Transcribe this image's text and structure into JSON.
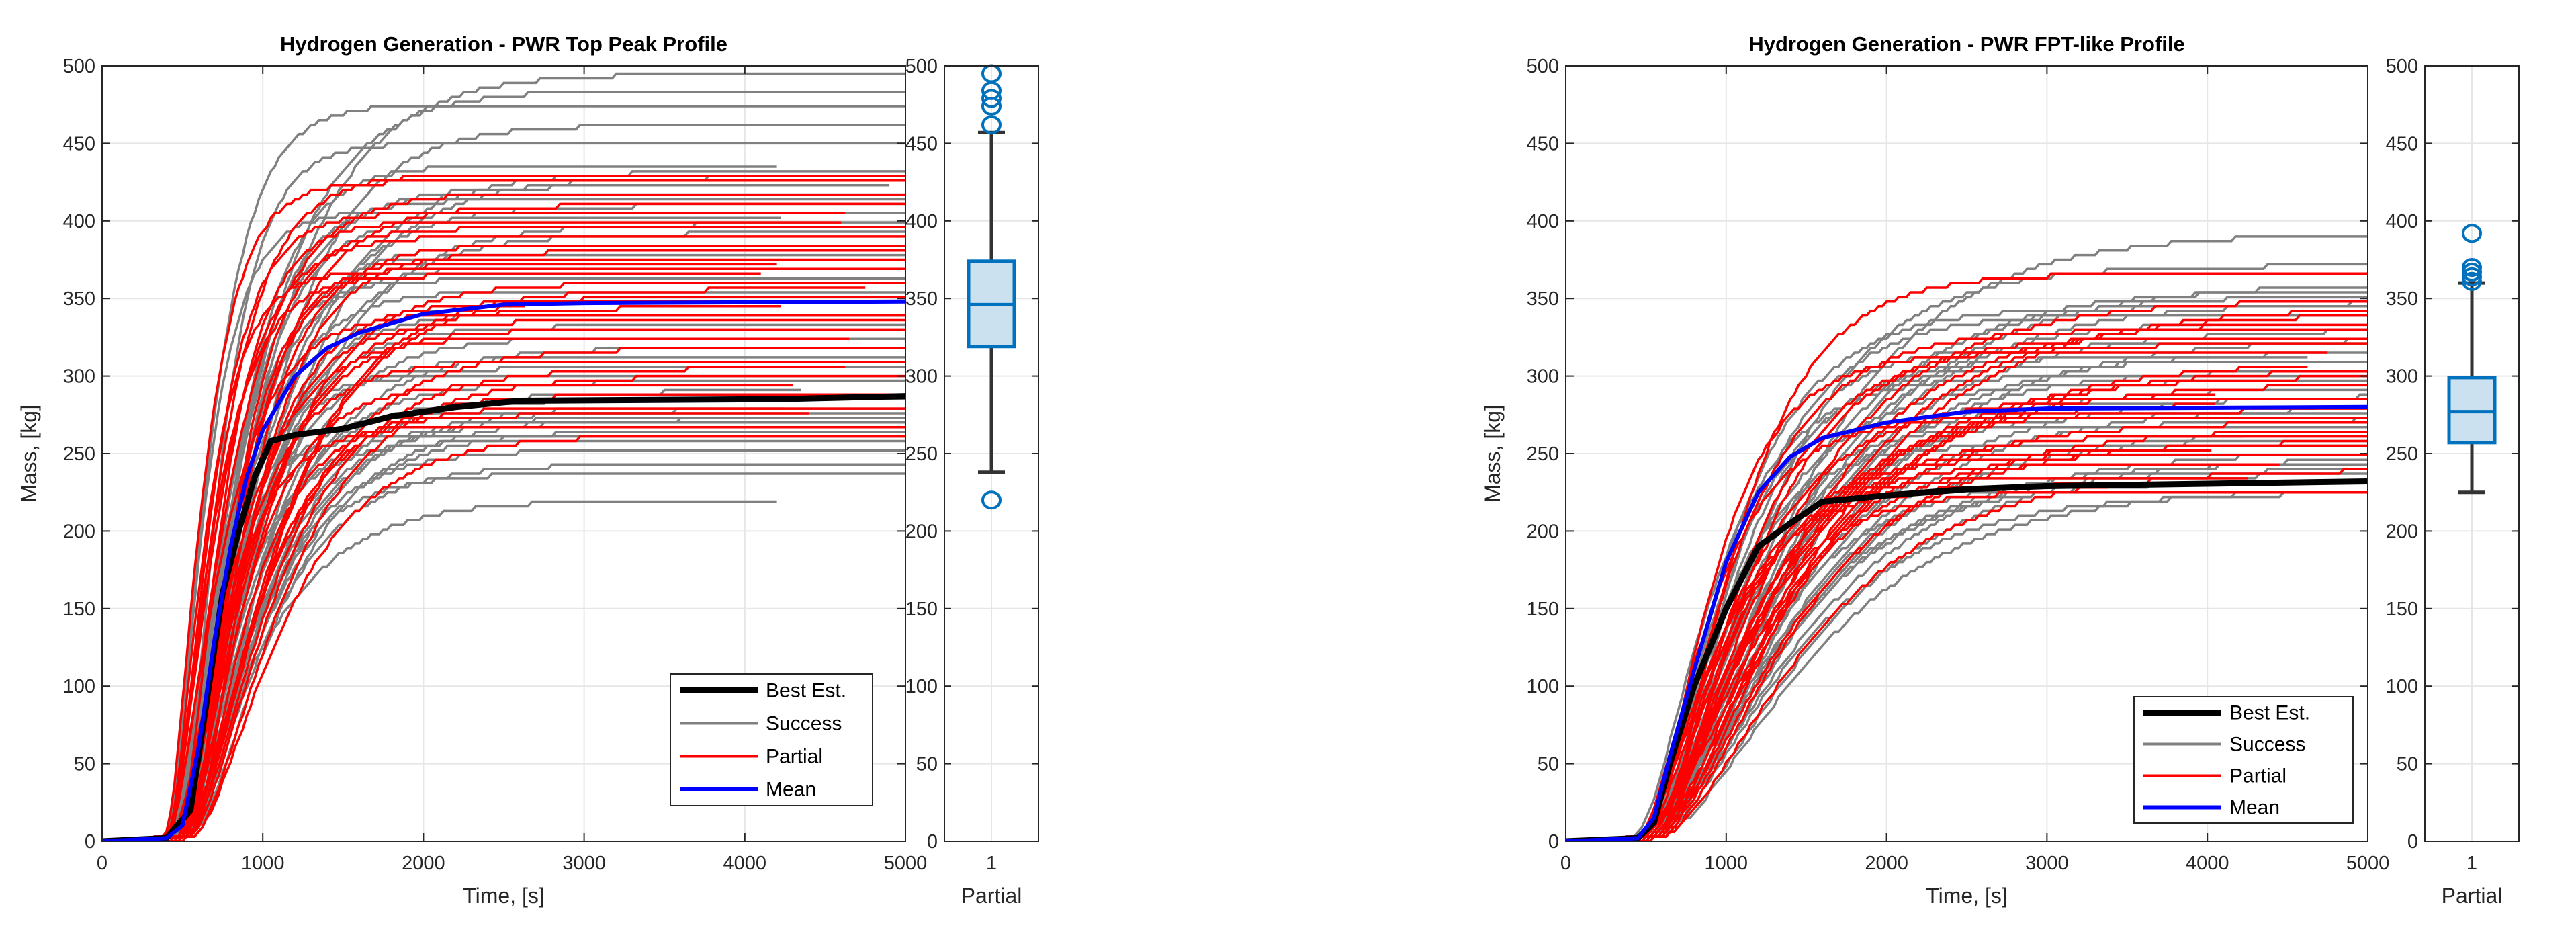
{
  "chart_data": [
    {
      "type": "line",
      "title": "Hydrogen Generation - PWR Top Peak Profile",
      "xlabel": "Time, [s]",
      "ylabel": "Mass, [kg]",
      "xlim": [
        0,
        5000
      ],
      "ylim": [
        0,
        500
      ],
      "xticks": [
        "0",
        "1000",
        "2000",
        "3000",
        "4000",
        "5000"
      ],
      "yticks": [
        "0",
        "50",
        "100",
        "150",
        "200",
        "250",
        "300",
        "350",
        "400",
        "450",
        "500"
      ],
      "grid": true,
      "legend_position": "bottom-right",
      "legend": [
        "Best Est.",
        "Success",
        "Partial",
        "Mean"
      ],
      "colors": {
        "best": "#000000",
        "success": "#808080",
        "partial": "#ff0000",
        "mean": "#0000ff"
      },
      "series": [
        {
          "name": "Best Est.",
          "x": [
            0,
            400,
            550,
            650,
            750,
            850,
            950,
            1050,
            1200,
            1500,
            1800,
            2200,
            2600,
            4200,
            5000
          ],
          "y": [
            0,
            2,
            20,
            90,
            160,
            200,
            235,
            258,
            262,
            266,
            274,
            280,
            284,
            285,
            287
          ]
        },
        {
          "name": "Mean",
          "x": [
            0,
            400,
            500,
            600,
            700,
            800,
            900,
            1000,
            1200,
            1400,
            1600,
            2000,
            2500,
            3000,
            5000
          ],
          "y": [
            0,
            2,
            10,
            60,
            130,
            190,
            235,
            265,
            300,
            318,
            328,
            340,
            346,
            347,
            348
          ]
        }
      ],
      "ensembles": {
        "Success_final_values": [
          220,
          237,
          243,
          252,
          258,
          262,
          265,
          268,
          270,
          272,
          274,
          276,
          278,
          280,
          284,
          290,
          296,
          300,
          305,
          312,
          318,
          325,
          332,
          340,
          348,
          355,
          362,
          370,
          378,
          385,
          392,
          398,
          402,
          406,
          410,
          414,
          418,
          422,
          428,
          432,
          436,
          450,
          462,
          475,
          484,
          495
        ],
        "Partial_final_values": [
          262,
          268,
          275,
          280,
          288,
          295,
          300,
          305,
          310,
          318,
          325,
          330,
          335,
          340,
          344,
          348,
          352,
          356,
          360,
          365,
          368,
          372,
          376,
          380,
          385,
          390,
          395,
          400,
          405,
          410,
          418,
          425,
          430
        ]
      },
      "boxplot": {
        "xtick": "1",
        "xlabel": "Partial",
        "ylim": [
          0,
          500
        ],
        "yticks": [
          "0",
          "50",
          "100",
          "150",
          "200",
          "250",
          "300",
          "350",
          "400",
          "450",
          "500"
        ],
        "q1": 319,
        "median": 346,
        "q3": 374,
        "whisker_low": 238,
        "whisker_high": 457,
        "outliers": [
          220,
          462,
          474,
          479,
          484,
          495
        ],
        "color": "#0072bd"
      }
    },
    {
      "type": "line",
      "title": "Hydrogen Generation - PWR FPT-like Profile",
      "xlabel": "Time, [s]",
      "ylabel": "Mass, [kg]",
      "xlim": [
        0,
        5000
      ],
      "ylim": [
        0,
        500
      ],
      "xticks": [
        "0",
        "1000",
        "2000",
        "3000",
        "4000",
        "5000"
      ],
      "yticks": [
        "0",
        "50",
        "100",
        "150",
        "200",
        "250",
        "300",
        "350",
        "400",
        "450",
        "500"
      ],
      "grid": true,
      "legend_position": "bottom-right",
      "legend": [
        "Best Est.",
        "Success",
        "Partial",
        "Mean"
      ],
      "colors": {
        "best": "#000000",
        "success": "#808080",
        "partial": "#ff0000",
        "mean": "#0000ff"
      },
      "series": [
        {
          "name": "Best Est.",
          "x": [
            0,
            450,
            550,
            650,
            800,
            1000,
            1200,
            1400,
            1600,
            2000,
            2500,
            3000,
            5000
          ],
          "y": [
            0,
            2,
            12,
            50,
            100,
            150,
            190,
            205,
            219,
            223,
            227,
            229,
            232
          ]
        },
        {
          "name": "Mean",
          "x": [
            0,
            450,
            550,
            650,
            800,
            1000,
            1200,
            1400,
            1600,
            2000,
            2500,
            3000,
            5000
          ],
          "y": [
            0,
            2,
            15,
            55,
            110,
            180,
            225,
            248,
            260,
            270,
            277,
            279,
            280
          ]
        }
      ],
      "ensembles": {
        "Success_final_values": [
          225,
          228,
          232,
          236,
          240,
          244,
          248,
          252,
          256,
          260,
          264,
          268,
          272,
          276,
          280,
          284,
          288,
          292,
          296,
          300,
          304,
          308,
          312,
          316,
          320,
          325,
          330,
          336,
          340,
          344,
          348,
          352,
          356,
          360,
          371,
          392
        ],
        "Partial_final_values": [
          226,
          230,
          235,
          240,
          243,
          248,
          252,
          256,
          258,
          262,
          266,
          270,
          274,
          278,
          282,
          286,
          290,
          295,
          300,
          305,
          310,
          315,
          320,
          325,
          330,
          335,
          340,
          345,
          349,
          366
        ]
      },
      "boxplot": {
        "xtick": "1",
        "xlabel": "Partial",
        "ylim": [
          0,
          500
        ],
        "yticks": [
          "0",
          "50",
          "100",
          "150",
          "200",
          "250",
          "300",
          "350",
          "400",
          "450",
          "500"
        ],
        "q1": 257,
        "median": 277,
        "q3": 299,
        "whisker_low": 225,
        "whisker_high": 360,
        "outliers": [
          361,
          364,
          367,
          370,
          392
        ],
        "color": "#0072bd"
      }
    }
  ]
}
